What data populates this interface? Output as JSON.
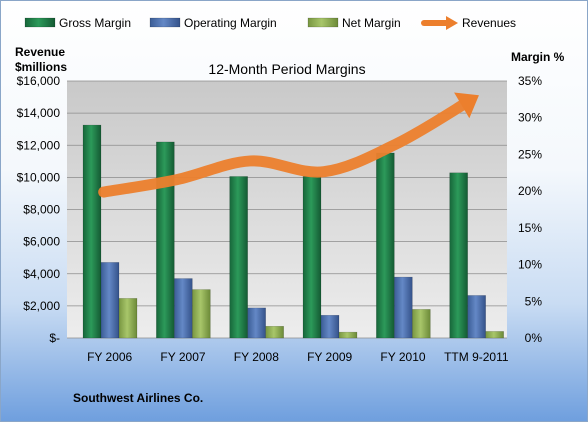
{
  "chart_data": {
    "type": "bar+line",
    "title": "12-Month Period Margins",
    "left_axis_label_line1": "Revenue",
    "left_axis_label_line2": "$millions",
    "right_axis_label": "Margin %",
    "footer": "Southwest Airlines Co.",
    "categories": [
      "FY 2006",
      "FY 2007",
      "FY 2008",
      "FY 2009",
      "FY 2010",
      "TTM 9-2011"
    ],
    "left_ylim": [
      0,
      16000
    ],
    "left_ticks": [
      0,
      2000,
      4000,
      6000,
      8000,
      10000,
      12000,
      14000,
      16000
    ],
    "left_tick_labels": [
      "$-",
      "$2,000",
      "$4,000",
      "$6,000",
      "$8,000",
      "$10,000",
      "$12,000",
      "$14,000",
      "$16,000"
    ],
    "right_ylim": [
      0,
      35
    ],
    "right_ticks": [
      0,
      5,
      10,
      15,
      20,
      25,
      30,
      35
    ],
    "right_tick_labels": [
      "0%",
      "5%",
      "10%",
      "15%",
      "20%",
      "25%",
      "30%",
      "35%"
    ],
    "legend_position": "top",
    "series": [
      {
        "name": "Gross Margin",
        "axis": "right",
        "kind": "bar",
        "color": "#1e7b45",
        "values": [
          29,
          26.7,
          22,
          22,
          25.2,
          22.5
        ]
      },
      {
        "name": "Operating Margin",
        "axis": "right",
        "kind": "bar",
        "color": "#4a6fae",
        "values": [
          10.3,
          8.1,
          4.1,
          3.1,
          8.3,
          5.8
        ]
      },
      {
        "name": "Net Margin",
        "axis": "right",
        "kind": "bar",
        "color": "#8fae4f",
        "values": [
          5.4,
          6.6,
          1.6,
          0.8,
          3.9,
          0.9
        ]
      },
      {
        "name": "Revenues",
        "axis": "left",
        "kind": "line",
        "color": "#ec7f2d",
        "values": [
          9086,
          9861,
          11023,
          10350,
          12104,
          14800
        ]
      }
    ]
  }
}
